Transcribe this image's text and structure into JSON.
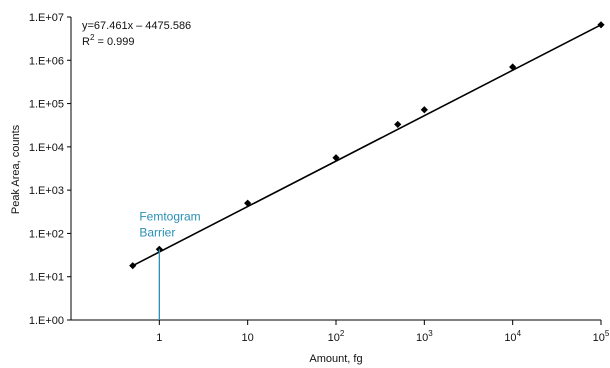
{
  "chart_data": {
    "type": "scatter",
    "title": "",
    "xlabel": "Amount, fg",
    "ylabel": "Peak Area, counts",
    "x_scale": "log",
    "y_scale": "log",
    "xlim": [
      0.1,
      100000
    ],
    "ylim": [
      1,
      10000000
    ],
    "grid": false,
    "x_ticks": [
      {
        "value": 1,
        "base": "1",
        "exp": ""
      },
      {
        "value": 10,
        "base": "10",
        "exp": ""
      },
      {
        "value": 100,
        "base": "10",
        "exp": "2"
      },
      {
        "value": 1000,
        "base": "10",
        "exp": "3"
      },
      {
        "value": 10000,
        "base": "10",
        "exp": "4"
      },
      {
        "value": 100000,
        "base": "10",
        "exp": "5"
      }
    ],
    "y_ticks": [
      {
        "value": 1,
        "label": "1.E+00"
      },
      {
        "value": 10,
        "label": "1.E+01"
      },
      {
        "value": 100,
        "label": "1.E+02"
      },
      {
        "value": 1000,
        "label": "1.E+03"
      },
      {
        "value": 10000,
        "label": "1.E+04"
      },
      {
        "value": 100000,
        "label": "1.E+05"
      },
      {
        "value": 1000000,
        "label": "1.E+06"
      },
      {
        "value": 10000000,
        "label": "1.E+07"
      }
    ],
    "series": [
      {
        "points": [
          {
            "x": 0.5,
            "y": 18
          },
          {
            "x": 1,
            "y": 43
          },
          {
            "x": 10,
            "y": 500
          },
          {
            "x": 100,
            "y": 5600
          },
          {
            "x": 500,
            "y": 33000
          },
          {
            "x": 1000,
            "y": 72000
          },
          {
            "x": 10000,
            "y": 700000
          },
          {
            "x": 100000,
            "y": 6600000
          }
        ],
        "color": "#000000"
      }
    ],
    "fit_line": {
      "from": {
        "x": 0.5,
        "y": 18
      },
      "to": {
        "x": 100000,
        "y": 6600000
      },
      "color": "#000000"
    },
    "equation": {
      "line1": "y=67.461x – 4475.586",
      "r_base": "R",
      "r_exp": "2",
      "r_value": " = 0.999"
    },
    "annotation": {
      "line1": "Femtogram",
      "line2": "Barrier",
      "x": 1,
      "y": 43,
      "color": "#2a8fb5"
    }
  }
}
